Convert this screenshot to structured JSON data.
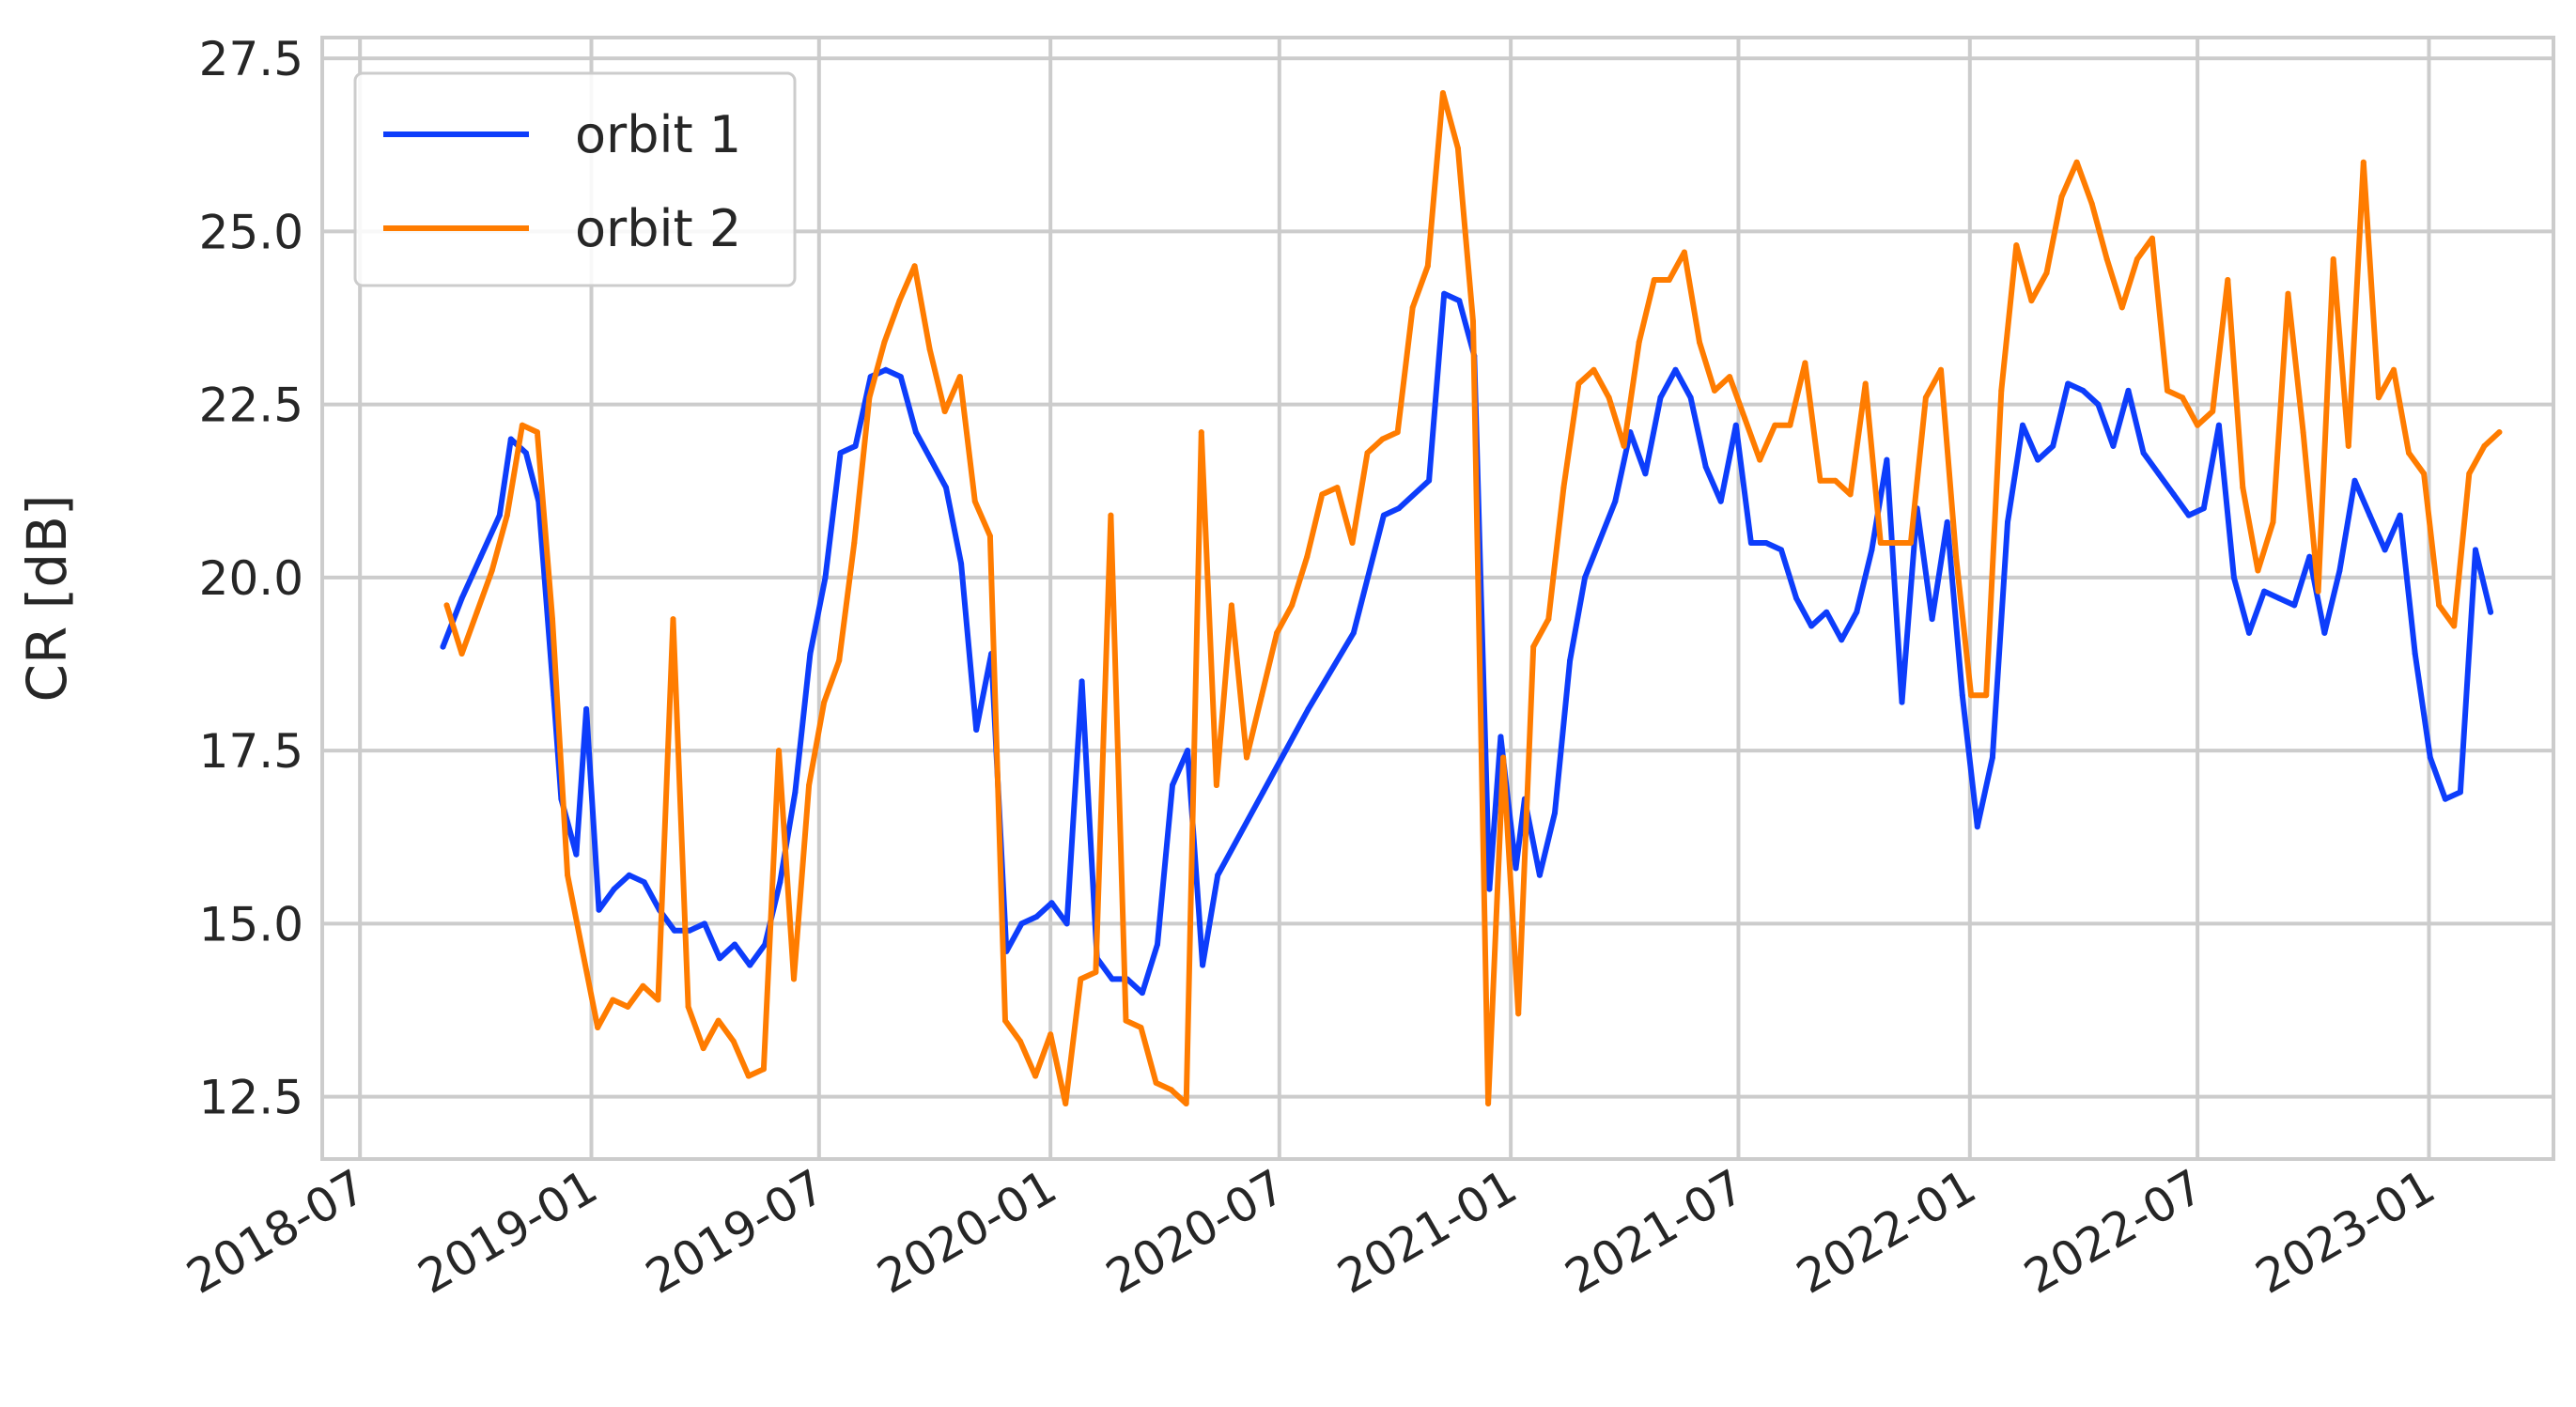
{
  "chart_data": {
    "type": "line",
    "xlabel": "",
    "ylabel": "CR [dB]",
    "ylim": [
      11.6,
      27.8
    ],
    "xlim": [
      "2018-06-01",
      "2023-04-10"
    ],
    "grid": true,
    "legend_position": "top-left",
    "x_ticks": [
      "2018-07",
      "2019-01",
      "2019-07",
      "2020-01",
      "2020-07",
      "2021-01",
      "2021-07",
      "2022-01",
      "2022-07",
      "2023-01"
    ],
    "y_ticks": [
      "12.5",
      "15.0",
      "17.5",
      "20.0",
      "22.5",
      "25.0",
      "27.5"
    ],
    "colors": {
      "orbit 1": "#0d3dfb",
      "orbit 2": "#ff7c00"
    },
    "series": [
      {
        "name": "orbit 1",
        "color": "#0d3dfb",
        "points": [
          [
            "2018-09-05",
            19.0
          ],
          [
            "2018-09-20",
            19.7
          ],
          [
            "2018-10-05",
            20.3
          ],
          [
            "2018-10-20",
            20.9
          ],
          [
            "2018-10-29",
            22.0
          ],
          [
            "2018-11-10",
            21.8
          ],
          [
            "2018-11-20",
            21.1
          ],
          [
            "2018-12-02",
            18.3
          ],
          [
            "2018-12-08",
            16.8
          ],
          [
            "2018-12-20",
            16.0
          ],
          [
            "2018-12-28",
            18.1
          ],
          [
            "2019-01-07",
            15.2
          ],
          [
            "2019-01-19",
            15.5
          ],
          [
            "2019-01-31",
            15.7
          ],
          [
            "2019-02-12",
            15.6
          ],
          [
            "2019-02-24",
            15.2
          ],
          [
            "2019-03-08",
            14.9
          ],
          [
            "2019-03-20",
            14.9
          ],
          [
            "2019-04-01",
            15.0
          ],
          [
            "2019-04-13",
            14.5
          ],
          [
            "2019-04-25",
            14.7
          ],
          [
            "2019-05-07",
            14.4
          ],
          [
            "2019-05-19",
            14.7
          ],
          [
            "2019-05-31",
            15.6
          ],
          [
            "2019-06-12",
            16.9
          ],
          [
            "2019-06-24",
            18.9
          ],
          [
            "2019-07-06",
            20.0
          ],
          [
            "2019-07-18",
            21.8
          ],
          [
            "2019-07-30",
            21.9
          ],
          [
            "2019-08-11",
            22.9
          ],
          [
            "2019-08-23",
            23.0
          ],
          [
            "2019-09-04",
            22.9
          ],
          [
            "2019-09-16",
            22.1
          ],
          [
            "2019-09-28",
            21.7
          ],
          [
            "2019-10-10",
            21.3
          ],
          [
            "2019-10-22",
            20.2
          ],
          [
            "2019-11-03",
            17.8
          ],
          [
            "2019-11-15",
            18.9
          ],
          [
            "2019-11-27",
            14.6
          ],
          [
            "2019-12-09",
            15.0
          ],
          [
            "2019-12-21",
            15.1
          ],
          [
            "2020-01-02",
            15.3
          ],
          [
            "2020-01-14",
            15.0
          ],
          [
            "2020-01-26",
            18.5
          ],
          [
            "2020-02-07",
            14.5
          ],
          [
            "2020-02-19",
            14.2
          ],
          [
            "2020-03-02",
            14.2
          ],
          [
            "2020-03-14",
            14.0
          ],
          [
            "2020-03-26",
            14.7
          ],
          [
            "2020-04-07",
            17.0
          ],
          [
            "2020-04-19",
            17.5
          ],
          [
            "2020-05-01",
            14.4
          ],
          [
            "2020-05-13",
            15.7
          ],
          [
            "2020-06-18",
            16.9
          ],
          [
            "2020-07-24",
            18.1
          ],
          [
            "2020-08-29",
            19.2
          ],
          [
            "2020-09-22",
            20.9
          ],
          [
            "2020-10-04",
            21.0
          ],
          [
            "2020-10-28",
            21.4
          ],
          [
            "2020-11-09",
            24.1
          ],
          [
            "2020-11-21",
            24.0
          ],
          [
            "2020-12-03",
            23.2
          ],
          [
            "2020-12-15",
            15.5
          ],
          [
            "2020-12-24",
            17.7
          ],
          [
            "2021-01-05",
            15.8
          ],
          [
            "2021-01-12",
            16.8
          ],
          [
            "2021-01-24",
            15.7
          ],
          [
            "2021-02-05",
            16.6
          ],
          [
            "2021-02-17",
            18.8
          ],
          [
            "2021-03-01",
            20.0
          ],
          [
            "2021-03-25",
            21.1
          ],
          [
            "2021-04-06",
            22.1
          ],
          [
            "2021-04-18",
            21.5
          ],
          [
            "2021-04-30",
            22.6
          ],
          [
            "2021-05-12",
            23.0
          ],
          [
            "2021-05-24",
            22.6
          ],
          [
            "2021-06-05",
            21.6
          ],
          [
            "2021-06-17",
            21.1
          ],
          [
            "2021-06-29",
            22.2
          ],
          [
            "2021-07-11",
            20.5
          ],
          [
            "2021-07-23",
            20.5
          ],
          [
            "2021-08-04",
            20.4
          ],
          [
            "2021-08-16",
            19.7
          ],
          [
            "2021-08-28",
            19.3
          ],
          [
            "2021-09-09",
            19.5
          ],
          [
            "2021-09-21",
            19.1
          ],
          [
            "2021-10-03",
            19.5
          ],
          [
            "2021-10-15",
            20.4
          ],
          [
            "2021-10-27",
            21.7
          ],
          [
            "2021-11-08",
            18.2
          ],
          [
            "2021-11-20",
            21.0
          ],
          [
            "2021-12-02",
            19.4
          ],
          [
            "2021-12-14",
            20.8
          ],
          [
            "2021-12-26",
            18.3
          ],
          [
            "2022-01-07",
            16.4
          ],
          [
            "2022-01-19",
            17.4
          ],
          [
            "2022-01-31",
            20.8
          ],
          [
            "2022-02-12",
            22.2
          ],
          [
            "2022-02-24",
            21.7
          ],
          [
            "2022-03-08",
            21.9
          ],
          [
            "2022-03-20",
            22.8
          ],
          [
            "2022-04-01",
            22.7
          ],
          [
            "2022-04-13",
            22.5
          ],
          [
            "2022-04-25",
            21.9
          ],
          [
            "2022-05-07",
            22.7
          ],
          [
            "2022-05-19",
            21.8
          ],
          [
            "2022-05-31",
            21.5
          ],
          [
            "2022-06-12",
            21.2
          ],
          [
            "2022-06-24",
            20.9
          ],
          [
            "2022-07-06",
            21.0
          ],
          [
            "2022-07-18",
            22.2
          ],
          [
            "2022-07-30",
            20.0
          ],
          [
            "2022-08-11",
            19.2
          ],
          [
            "2022-08-23",
            19.8
          ],
          [
            "2022-09-04",
            19.7
          ],
          [
            "2022-09-16",
            19.6
          ],
          [
            "2022-09-28",
            20.3
          ],
          [
            "2022-10-10",
            19.2
          ],
          [
            "2022-10-22",
            20.1
          ],
          [
            "2022-11-03",
            21.4
          ],
          [
            "2022-11-15",
            20.9
          ],
          [
            "2022-11-27",
            20.4
          ],
          [
            "2022-12-09",
            20.9
          ],
          [
            "2022-12-21",
            18.9
          ],
          [
            "2023-01-02",
            17.4
          ],
          [
            "2023-01-14",
            16.8
          ],
          [
            "2023-01-26",
            16.9
          ],
          [
            "2023-02-07",
            20.4
          ],
          [
            "2023-02-19",
            19.5
          ]
        ]
      },
      {
        "name": "orbit 2",
        "color": "#ff7c00",
        "points": [
          [
            "2018-09-08",
            19.6
          ],
          [
            "2018-09-20",
            18.9
          ],
          [
            "2018-10-02",
            19.5
          ],
          [
            "2018-10-14",
            20.1
          ],
          [
            "2018-10-26",
            20.9
          ],
          [
            "2018-11-07",
            22.2
          ],
          [
            "2018-11-19",
            22.1
          ],
          [
            "2018-12-01",
            19.4
          ],
          [
            "2018-12-13",
            15.7
          ],
          [
            "2018-12-25",
            14.6
          ],
          [
            "2019-01-06",
            13.5
          ],
          [
            "2019-01-18",
            13.9
          ],
          [
            "2019-01-30",
            13.8
          ],
          [
            "2019-02-11",
            14.1
          ],
          [
            "2019-02-23",
            13.9
          ],
          [
            "2019-03-07",
            19.4
          ],
          [
            "2019-03-19",
            13.8
          ],
          [
            "2019-03-31",
            13.2
          ],
          [
            "2019-04-12",
            13.6
          ],
          [
            "2019-04-24",
            13.3
          ],
          [
            "2019-05-06",
            12.8
          ],
          [
            "2019-05-18",
            12.9
          ],
          [
            "2019-05-30",
            17.5
          ],
          [
            "2019-06-11",
            14.2
          ],
          [
            "2019-06-23",
            17.0
          ],
          [
            "2019-07-05",
            18.2
          ],
          [
            "2019-07-17",
            18.8
          ],
          [
            "2019-07-29",
            20.5
          ],
          [
            "2019-08-10",
            22.6
          ],
          [
            "2019-08-22",
            23.4
          ],
          [
            "2019-09-03",
            24.0
          ],
          [
            "2019-09-15",
            24.5
          ],
          [
            "2019-09-27",
            23.3
          ],
          [
            "2019-10-09",
            22.4
          ],
          [
            "2019-10-21",
            22.9
          ],
          [
            "2019-11-02",
            21.1
          ],
          [
            "2019-11-14",
            20.6
          ],
          [
            "2019-11-26",
            13.6
          ],
          [
            "2019-12-08",
            13.3
          ],
          [
            "2019-12-20",
            12.8
          ],
          [
            "2020-01-01",
            13.4
          ],
          [
            "2020-01-13",
            12.4
          ],
          [
            "2020-01-25",
            14.2
          ],
          [
            "2020-02-06",
            14.3
          ],
          [
            "2020-02-18",
            20.9
          ],
          [
            "2020-03-01",
            13.6
          ],
          [
            "2020-03-13",
            13.5
          ],
          [
            "2020-03-25",
            12.7
          ],
          [
            "2020-04-06",
            12.6
          ],
          [
            "2020-04-18",
            12.4
          ],
          [
            "2020-04-30",
            22.1
          ],
          [
            "2020-05-12",
            17.0
          ],
          [
            "2020-05-24",
            19.6
          ],
          [
            "2020-06-05",
            17.4
          ],
          [
            "2020-06-17",
            18.3
          ],
          [
            "2020-06-29",
            19.2
          ],
          [
            "2020-07-11",
            19.6
          ],
          [
            "2020-07-23",
            20.3
          ],
          [
            "2020-08-04",
            21.2
          ],
          [
            "2020-08-16",
            21.3
          ],
          [
            "2020-08-28",
            20.5
          ],
          [
            "2020-09-09",
            21.8
          ],
          [
            "2020-09-21",
            22.0
          ],
          [
            "2020-10-03",
            22.1
          ],
          [
            "2020-10-15",
            23.9
          ],
          [
            "2020-10-27",
            24.5
          ],
          [
            "2020-11-08",
            27.0
          ],
          [
            "2020-11-20",
            26.2
          ],
          [
            "2020-12-02",
            23.7
          ],
          [
            "2020-12-14",
            12.4
          ],
          [
            "2020-12-26",
            17.4
          ],
          [
            "2021-01-07",
            13.7
          ],
          [
            "2021-01-19",
            19.0
          ],
          [
            "2021-01-31",
            19.4
          ],
          [
            "2021-02-12",
            21.3
          ],
          [
            "2021-02-24",
            22.8
          ],
          [
            "2021-03-08",
            23.0
          ],
          [
            "2021-03-20",
            22.6
          ],
          [
            "2021-04-01",
            21.9
          ],
          [
            "2021-04-13",
            23.4
          ],
          [
            "2021-04-25",
            24.3
          ],
          [
            "2021-05-07",
            24.3
          ],
          [
            "2021-05-19",
            24.7
          ],
          [
            "2021-05-31",
            23.4
          ],
          [
            "2021-06-12",
            22.7
          ],
          [
            "2021-06-24",
            22.9
          ],
          [
            "2021-07-06",
            22.3
          ],
          [
            "2021-07-18",
            21.7
          ],
          [
            "2021-07-30",
            22.2
          ],
          [
            "2021-08-11",
            22.2
          ],
          [
            "2021-08-23",
            23.1
          ],
          [
            "2021-09-04",
            21.4
          ],
          [
            "2021-09-16",
            21.4
          ],
          [
            "2021-09-28",
            21.2
          ],
          [
            "2021-10-10",
            22.8
          ],
          [
            "2021-10-22",
            20.5
          ],
          [
            "2021-11-03",
            20.5
          ],
          [
            "2021-11-15",
            20.5
          ],
          [
            "2021-11-27",
            22.6
          ],
          [
            "2021-12-09",
            23.0
          ],
          [
            "2021-12-21",
            20.3
          ],
          [
            "2022-01-02",
            18.3
          ],
          [
            "2022-01-14",
            18.3
          ],
          [
            "2022-01-26",
            22.7
          ],
          [
            "2022-02-07",
            24.8
          ],
          [
            "2022-02-19",
            24.0
          ],
          [
            "2022-03-03",
            24.4
          ],
          [
            "2022-03-15",
            25.5
          ],
          [
            "2022-03-27",
            26.0
          ],
          [
            "2022-04-08",
            25.4
          ],
          [
            "2022-04-20",
            24.6
          ],
          [
            "2022-05-02",
            23.9
          ],
          [
            "2022-05-14",
            24.6
          ],
          [
            "2022-05-26",
            24.9
          ],
          [
            "2022-06-07",
            22.7
          ],
          [
            "2022-06-19",
            22.6
          ],
          [
            "2022-07-01",
            22.2
          ],
          [
            "2022-07-13",
            22.4
          ],
          [
            "2022-07-25",
            24.3
          ],
          [
            "2022-08-06",
            21.3
          ],
          [
            "2022-08-18",
            20.1
          ],
          [
            "2022-08-30",
            20.8
          ],
          [
            "2022-09-11",
            24.1
          ],
          [
            "2022-09-23",
            22.1
          ],
          [
            "2022-10-05",
            19.8
          ],
          [
            "2022-10-17",
            24.6
          ],
          [
            "2022-10-29",
            21.9
          ],
          [
            "2022-11-10",
            26.0
          ],
          [
            "2022-11-22",
            22.6
          ],
          [
            "2022-12-04",
            23.0
          ],
          [
            "2022-12-16",
            21.8
          ],
          [
            "2022-12-28",
            21.5
          ],
          [
            "2023-01-09",
            19.6
          ],
          [
            "2023-01-21",
            19.3
          ],
          [
            "2023-02-02",
            21.5
          ],
          [
            "2023-02-14",
            21.9
          ],
          [
            "2023-02-26",
            22.1
          ]
        ]
      }
    ]
  }
}
